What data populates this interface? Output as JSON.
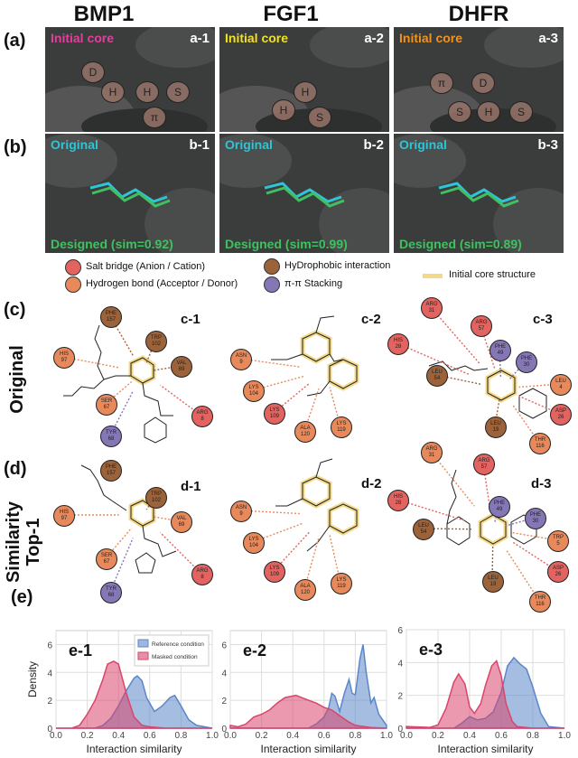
{
  "columns": [
    "BMP1",
    "FGF1",
    "DHFR"
  ],
  "row_labels": {
    "a": "(a)",
    "b": "(b)",
    "c": "(c)",
    "d": "(d)",
    "e": "(e)"
  },
  "side_labels": {
    "original": "Original",
    "similarity_line1": "Similarity",
    "similarity_line2": "Top-1"
  },
  "colors": {
    "salt_bridge": "#e2635f",
    "hbond": "#e8895c",
    "hydrophobic": "#9c623a",
    "pi": "#8577b6",
    "core": "#f3d98a",
    "original": "#2fc4d6",
    "designed": "#40c060",
    "surface": "#3b3d3d"
  },
  "surface_panels_a": [
    {
      "id": "a-1",
      "tag": "Initial core",
      "tag_color": "#e0409a",
      "sites": [
        "D",
        "H",
        "H",
        "S",
        "π"
      ]
    },
    {
      "id": "a-2",
      "tag": "Initial core",
      "tag_color": "#f2e21a",
      "sites": [
        "H",
        "H",
        "S"
      ]
    },
    {
      "id": "a-3",
      "tag": "Initial core",
      "tag_color": "#f0921e",
      "sites": [
        "π",
        "D",
        "S",
        "H",
        "S"
      ]
    }
  ],
  "surface_panels_b": [
    {
      "id": "b-1",
      "original": "Original",
      "designed": "Designed (sim=0.92)"
    },
    {
      "id": "b-2",
      "original": "Original",
      "designed": "Designed (sim=0.99)"
    },
    {
      "id": "b-3",
      "original": "Original",
      "designed": "Designed (sim=0.89)"
    }
  ],
  "legend": {
    "salt": "Salt bridge (Anion / Cation)",
    "hbond": "Hydrogen bond (Acceptor / Donor)",
    "hydrophobic": "HyDrophobic interaction",
    "pi": "π-π Stacking",
    "core": "Initial core structure"
  },
  "interaction_panels": [
    {
      "id": "c-1",
      "residues": [
        [
          "PHE",
          "157",
          "hydrophobic"
        ],
        [
          "TRP",
          "102",
          "hydrophobic"
        ],
        [
          "HIS",
          "97",
          "hbond"
        ],
        [
          "VAL",
          "69",
          "hydrophobic"
        ],
        [
          "SER",
          "67",
          "hbond"
        ],
        [
          "ARG",
          "8",
          "salt"
        ],
        [
          "TYR",
          "68",
          "pi"
        ]
      ]
    },
    {
      "id": "c-2",
      "residues": [
        [
          "ASN",
          "9",
          "hbond"
        ],
        [
          "LYS",
          "104",
          "hbond"
        ],
        [
          "LYS",
          "109",
          "salt"
        ],
        [
          "ALA",
          "120",
          "hbond"
        ],
        [
          "LYS",
          "119",
          "hbond"
        ]
      ]
    },
    {
      "id": "c-3",
      "residues": [
        [
          "ARG",
          "31",
          "salt"
        ],
        [
          "ARG",
          "57",
          "salt"
        ],
        [
          "HIS",
          "28",
          "salt"
        ],
        [
          "PHE",
          "49",
          "pi"
        ],
        [
          "PHE",
          "30",
          "pi"
        ],
        [
          "LEU",
          "54",
          "hydrophobic"
        ],
        [
          "LEU",
          "4",
          "hbond"
        ],
        [
          "ASP",
          "26",
          "salt"
        ],
        [
          "LEU",
          "19",
          "hydrophobic"
        ],
        [
          "THR",
          "116",
          "hbond"
        ]
      ]
    },
    {
      "id": "d-1",
      "residues": [
        [
          "PHE",
          "157",
          "hydrophobic"
        ],
        [
          "TRP",
          "102",
          "hydrophobic"
        ],
        [
          "HIS",
          "97",
          "hbond"
        ],
        [
          "VAL",
          "69",
          "hbond"
        ],
        [
          "SER",
          "67",
          "hbond"
        ],
        [
          "ARG",
          "8",
          "salt"
        ],
        [
          "TYR",
          "68",
          "pi"
        ]
      ]
    },
    {
      "id": "d-2",
      "residues": [
        [
          "ASN",
          "9",
          "hbond"
        ],
        [
          "LYS",
          "104",
          "hbond"
        ],
        [
          "LYS",
          "109",
          "salt"
        ],
        [
          "ALA",
          "120",
          "hbond"
        ],
        [
          "LYS",
          "119",
          "hbond"
        ]
      ]
    },
    {
      "id": "d-3",
      "residues": [
        [
          "ARG",
          "31",
          "hbond"
        ],
        [
          "ARG",
          "57",
          "salt"
        ],
        [
          "HIS",
          "28",
          "salt"
        ],
        [
          "PHE",
          "49",
          "pi"
        ],
        [
          "PHE",
          "30",
          "pi"
        ],
        [
          "LEU",
          "54",
          "hydrophobic"
        ],
        [
          "TRP",
          "5",
          "hbond"
        ],
        [
          "ASP",
          "26",
          "salt"
        ],
        [
          "LEU",
          "19",
          "hydrophobic"
        ],
        [
          "THR",
          "116",
          "hbond"
        ]
      ]
    }
  ],
  "chart_data": [
    {
      "id": "e-1",
      "type": "area",
      "xlabel": "Interaction similarity",
      "ylabel": "Density",
      "xlim": [
        0,
        1
      ],
      "ylim": [
        0,
        7
      ],
      "xticks": [
        "0.0",
        "0.2",
        "0.4",
        "0.6",
        "0.8",
        "1.0"
      ],
      "yticks": [
        "0",
        "2",
        "4",
        "6"
      ],
      "grid": true,
      "legend": "top-right",
      "series": [
        {
          "name": "Reference condition",
          "color": "#5b86c8",
          "points": [
            [
              0,
              0
            ],
            [
              0.25,
              0
            ],
            [
              0.3,
              0.2
            ],
            [
              0.35,
              0.7
            ],
            [
              0.4,
              1.6
            ],
            [
              0.45,
              2.7
            ],
            [
              0.5,
              3.6
            ],
            [
              0.52,
              3.75
            ],
            [
              0.55,
              3.4
            ],
            [
              0.58,
              2.2
            ],
            [
              0.63,
              1.2
            ],
            [
              0.68,
              1.6
            ],
            [
              0.73,
              2.2
            ],
            [
              0.76,
              2.35
            ],
            [
              0.8,
              1.6
            ],
            [
              0.85,
              0.6
            ],
            [
              0.9,
              0.2
            ],
            [
              1,
              0
            ]
          ]
        },
        {
          "name": "Masked condition",
          "color": "#d9456b",
          "points": [
            [
              0,
              0
            ],
            [
              0.1,
              0
            ],
            [
              0.15,
              0.2
            ],
            [
              0.2,
              1
            ],
            [
              0.25,
              2
            ],
            [
              0.3,
              3.5
            ],
            [
              0.33,
              4.6
            ],
            [
              0.37,
              4.8
            ],
            [
              0.4,
              4.6
            ],
            [
              0.45,
              2.5
            ],
            [
              0.5,
              0.8
            ],
            [
              0.55,
              0.2
            ],
            [
              0.6,
              0.1
            ],
            [
              0.7,
              0
            ],
            [
              1,
              0
            ]
          ]
        }
      ]
    },
    {
      "id": "e-2",
      "type": "area",
      "xlabel": "Interaction similarity",
      "ylabel": "",
      "xlim": [
        0,
        1
      ],
      "ylim": [
        0,
        7
      ],
      "xticks": [
        "0.0",
        "0.2",
        "0.4",
        "0.6",
        "0.8",
        "1.0"
      ],
      "yticks": [
        "0",
        "2",
        "4",
        "6"
      ],
      "grid": true,
      "series": [
        {
          "name": "Reference condition",
          "color": "#5b86c8",
          "points": [
            [
              0,
              0
            ],
            [
              0.5,
              0
            ],
            [
              0.55,
              0.3
            ],
            [
              0.6,
              0.8
            ],
            [
              0.63,
              1.5
            ],
            [
              0.65,
              2.5
            ],
            [
              0.67,
              2.3
            ],
            [
              0.7,
              1.2
            ],
            [
              0.73,
              2.5
            ],
            [
              0.76,
              3.5
            ],
            [
              0.78,
              2.5
            ],
            [
              0.8,
              2.4
            ],
            [
              0.83,
              5.0
            ],
            [
              0.85,
              6.0
            ],
            [
              0.87,
              4.0
            ],
            [
              0.9,
              1.8
            ],
            [
              0.92,
              2.2
            ],
            [
              0.95,
              1.0
            ],
            [
              1,
              0.2
            ]
          ]
        },
        {
          "name": "Masked condition",
          "color": "#d9456b",
          "points": [
            [
              0,
              0.2
            ],
            [
              0.05,
              0.1
            ],
            [
              0.1,
              0.3
            ],
            [
              0.15,
              0.8
            ],
            [
              0.2,
              1.0
            ],
            [
              0.25,
              1.3
            ],
            [
              0.3,
              1.8
            ],
            [
              0.35,
              2.2
            ],
            [
              0.42,
              2.35
            ],
            [
              0.5,
              2.0
            ],
            [
              0.55,
              1.8
            ],
            [
              0.6,
              1.5
            ],
            [
              0.65,
              1.3
            ],
            [
              0.7,
              0.9
            ],
            [
              0.75,
              0.5
            ],
            [
              0.8,
              0.2
            ],
            [
              0.9,
              0.05
            ],
            [
              1,
              0
            ]
          ]
        }
      ]
    },
    {
      "id": "e-3",
      "type": "area",
      "xlabel": "Interaction similarity",
      "ylabel": "",
      "xlim": [
        0,
        1
      ],
      "ylim": [
        0,
        6
      ],
      "xticks": [
        "0.0",
        "0.2",
        "0.4",
        "0.6",
        "0.8",
        "1.0"
      ],
      "yticks": [
        "0",
        "2",
        "4",
        "6"
      ],
      "grid": true,
      "series": [
        {
          "name": "Reference condition",
          "color": "#5b86c8",
          "points": [
            [
              0,
              0
            ],
            [
              0.3,
              0
            ],
            [
              0.35,
              0.3
            ],
            [
              0.4,
              0.7
            ],
            [
              0.45,
              0.5
            ],
            [
              0.5,
              0.6
            ],
            [
              0.55,
              1.0
            ],
            [
              0.6,
              2.2
            ],
            [
              0.64,
              3.8
            ],
            [
              0.68,
              4.3
            ],
            [
              0.72,
              3.9
            ],
            [
              0.76,
              3.6
            ],
            [
              0.8,
              2.5
            ],
            [
              0.85,
              0.9
            ],
            [
              0.9,
              0.1
            ],
            [
              1,
              0
            ]
          ]
        },
        {
          "name": "Masked condition",
          "color": "#d9456b",
          "points": [
            [
              0,
              0.1
            ],
            [
              0.15,
              0.05
            ],
            [
              0.2,
              0.2
            ],
            [
              0.25,
              1.2
            ],
            [
              0.3,
              2.8
            ],
            [
              0.33,
              3.3
            ],
            [
              0.37,
              2.7
            ],
            [
              0.4,
              1.3
            ],
            [
              0.43,
              0.9
            ],
            [
              0.47,
              1.5
            ],
            [
              0.5,
              2.6
            ],
            [
              0.54,
              3.8
            ],
            [
              0.57,
              4.1
            ],
            [
              0.6,
              3.2
            ],
            [
              0.63,
              1.5
            ],
            [
              0.67,
              0.4
            ],
            [
              0.7,
              0.1
            ],
            [
              0.8,
              0
            ],
            [
              1,
              0
            ]
          ]
        }
      ]
    }
  ]
}
